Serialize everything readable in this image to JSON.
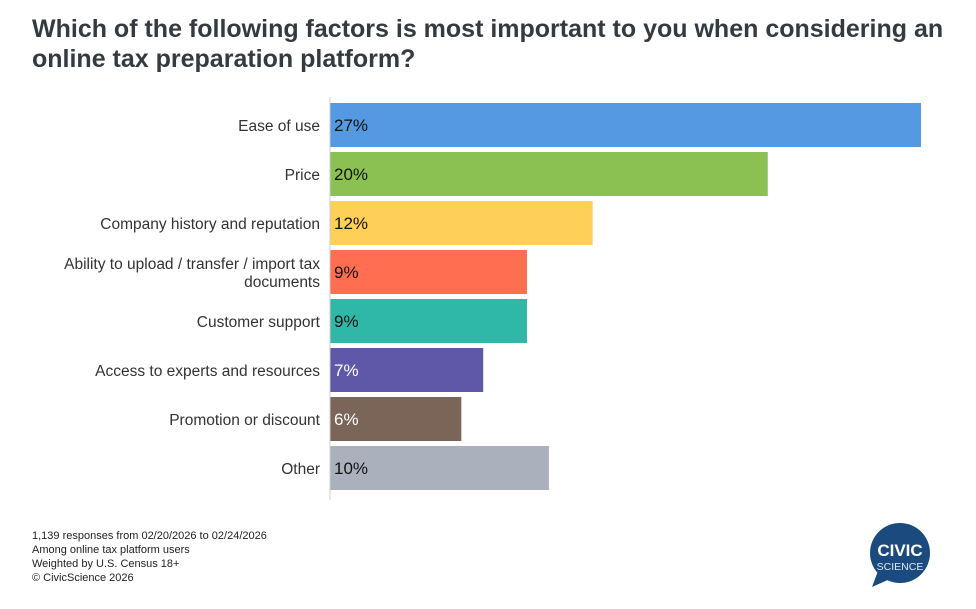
{
  "chart_data": {
    "type": "bar",
    "orientation": "horizontal",
    "title": "Which of the following factors is most important to you when considering an online tax preparation platform?",
    "categories": [
      "Ease of use",
      "Price",
      "Company history and reputation",
      "Ability to upload / transfer / import tax documents",
      "Customer support",
      "Access to experts and resources",
      "Promotion or discount",
      "Other"
    ],
    "values": [
      27,
      20,
      12,
      9,
      9,
      7,
      6,
      10
    ],
    "value_labels": [
      "27%",
      "20%",
      "12%",
      "9%",
      "9%",
      "7%",
      "6%",
      "10%"
    ],
    "colors": [
      "#5599e2",
      "#8bc153",
      "#ffd057",
      "#ff6e51",
      "#2fb7a7",
      "#5f58a8",
      "#7b6558",
      "#aab1bc"
    ],
    "label_colors": [
      "#111",
      "#111",
      "#111",
      "#111",
      "#111",
      "#fff",
      "#fff",
      "#111"
    ],
    "xlim": [
      0,
      27
    ],
    "xlabel": "",
    "ylabel": "",
    "grid": false,
    "legend": "none"
  },
  "footer": [
    "1,139 responses from 02/20/2026 to 02/24/2026",
    "Among online tax platform users",
    "Weighted by U.S. Census 18+",
    "© CivicScience 2026"
  ],
  "logo": {
    "line1": "CIVIC",
    "line2": "SCIENCE",
    "color": "#1b4b7e"
  }
}
